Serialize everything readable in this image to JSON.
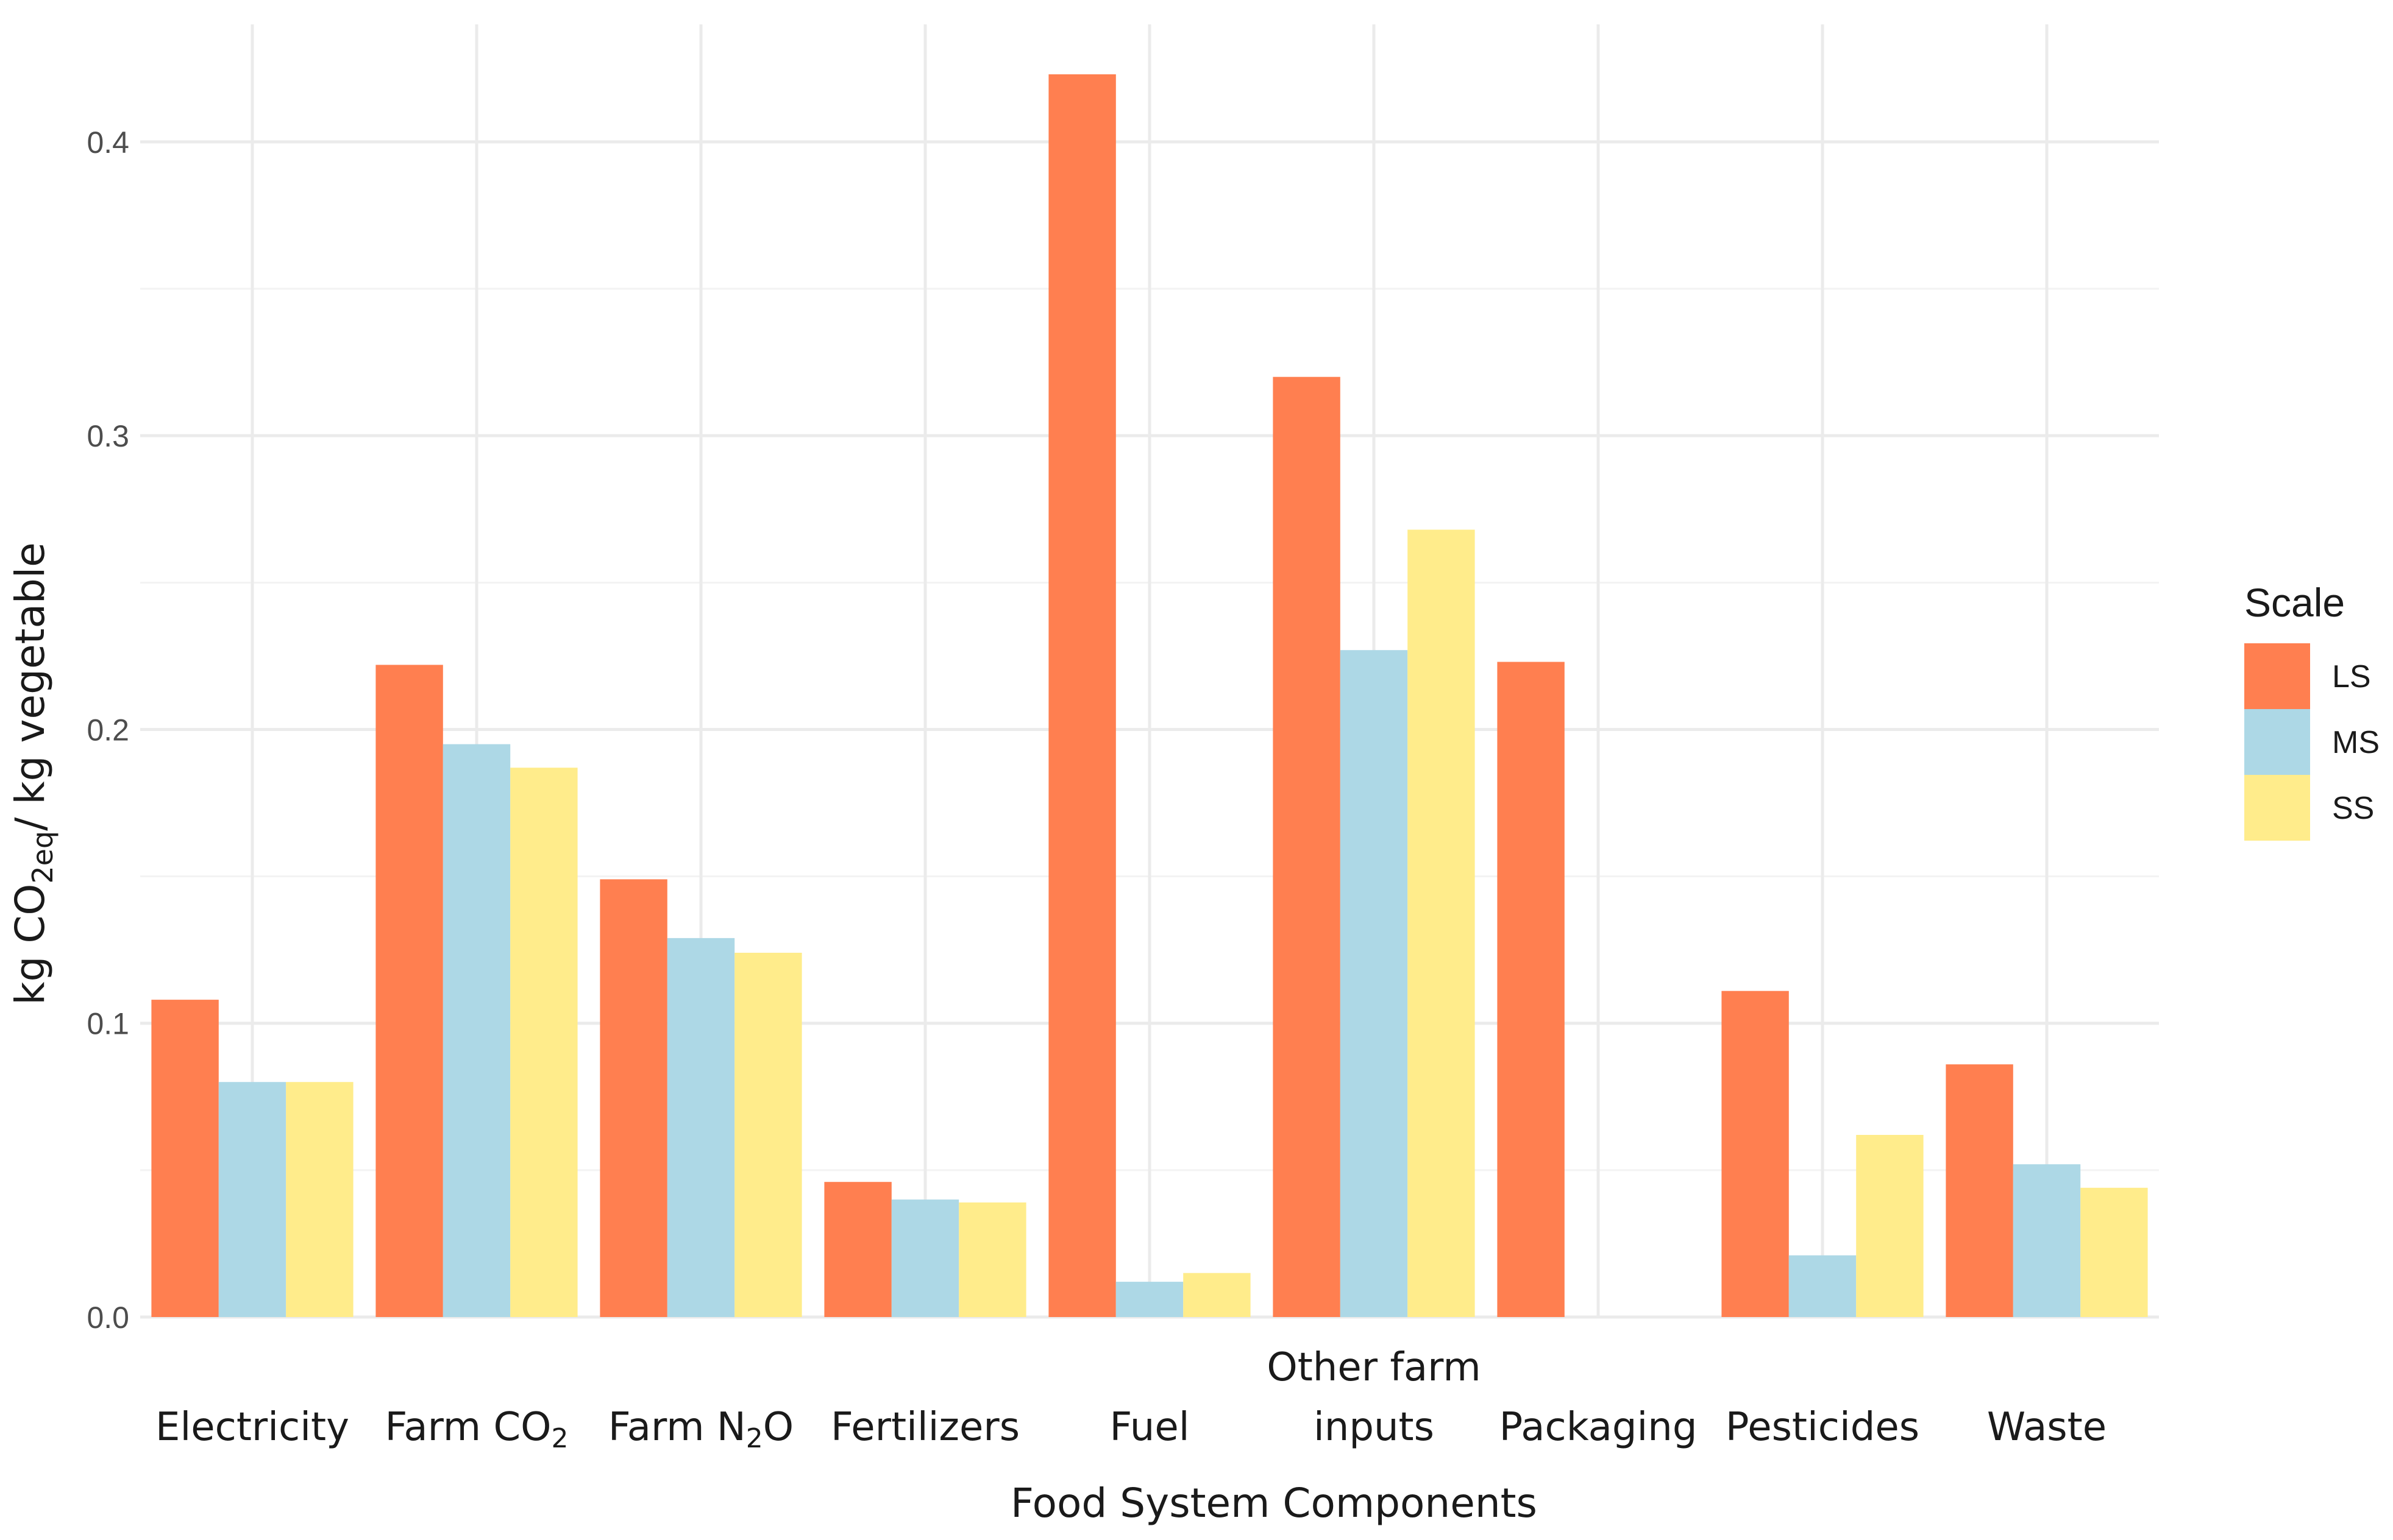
{
  "chart_data": {
    "type": "bar",
    "title": "",
    "xlabel": "Food System Components",
    "ylabel": {
      "prefix": "kg CO",
      "subscript": "2eq",
      "suffix": "/ kg vegetable"
    },
    "ylim": [
      0,
      0.44
    ],
    "yticks": [
      0.0,
      0.1,
      0.2,
      0.3,
      0.4
    ],
    "ytick_labels": [
      "0.0",
      "0.1",
      "0.2",
      "0.3",
      "0.4"
    ],
    "categories": [
      "Electricity",
      "Farm CO2",
      "Farm N2O",
      "Fertilizers",
      "Fuel",
      "Other farm inputs",
      "Packaging",
      "Pesticides",
      "Waste"
    ],
    "category_labels": [
      {
        "lines": [
          [
            {
              "t": "Electricity"
            }
          ]
        ]
      },
      {
        "lines": [
          [
            {
              "t": "Farm CO"
            },
            {
              "t": "2",
              "sub": true
            }
          ]
        ]
      },
      {
        "lines": [
          [
            {
              "t": "Farm N"
            },
            {
              "t": "2",
              "sub": true
            },
            {
              "t": "O"
            }
          ]
        ]
      },
      {
        "lines": [
          [
            {
              "t": "Fertilizers"
            }
          ]
        ]
      },
      {
        "lines": [
          [
            {
              "t": "Fuel"
            }
          ]
        ]
      },
      {
        "lines": [
          [
            {
              "t": "Other farm"
            }
          ],
          [
            {
              "t": "inputs"
            }
          ]
        ]
      },
      {
        "lines": [
          [
            {
              "t": "Packaging"
            }
          ]
        ]
      },
      {
        "lines": [
          [
            {
              "t": "Pesticides"
            }
          ]
        ]
      },
      {
        "lines": [
          [
            {
              "t": "Waste"
            }
          ]
        ]
      }
    ],
    "series": [
      {
        "name": "LS",
        "color": "#FF7F50",
        "values": [
          0.108,
          0.222,
          0.149,
          0.046,
          0.423,
          0.32,
          0.223,
          0.111,
          0.086
        ]
      },
      {
        "name": "MS",
        "color": "#ADD8E6",
        "values": [
          0.08,
          0.195,
          0.129,
          0.04,
          0.012,
          0.227,
          0.0,
          0.021,
          0.052
        ]
      },
      {
        "name": "SS",
        "color": "#FFEC8B",
        "values": [
          0.08,
          0.187,
          0.124,
          0.039,
          0.015,
          0.268,
          0.0,
          0.062,
          0.044
        ]
      }
    ],
    "grid": true,
    "legend": {
      "title": "Scale",
      "position": "right"
    }
  }
}
